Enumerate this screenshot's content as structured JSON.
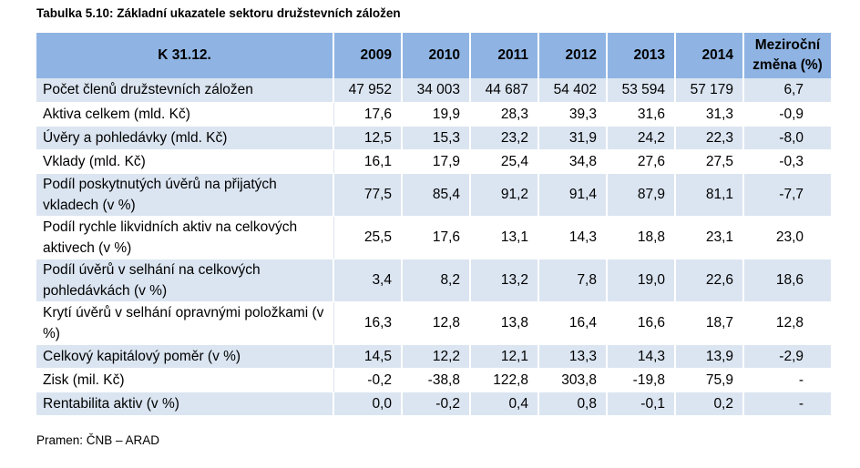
{
  "caption": "Tabulka 5.10: Základní ukazatele sektoru družstevních záložen",
  "header": {
    "label_col": "K 31.12.",
    "years": [
      "2009",
      "2010",
      "2011",
      "2012",
      "2013",
      "2014"
    ],
    "change_col": "Meziroční změna (%)"
  },
  "rows": [
    {
      "label": "Počet členů družstevních záložen",
      "values": [
        "47 952",
        "34 003",
        "44 687",
        "54 402",
        "53 594",
        "57 179"
      ],
      "change": "6,7"
    },
    {
      "label": "Aktiva celkem (mld. Kč)",
      "values": [
        "17,6",
        "19,9",
        "28,3",
        "39,3",
        "31,6",
        "31,3"
      ],
      "change": "-0,9"
    },
    {
      "label": "Úvěry a pohledávky (mld. Kč)",
      "values": [
        "12,5",
        "15,3",
        "23,2",
        "31,9",
        "24,2",
        "22,3"
      ],
      "change": "-8,0"
    },
    {
      "label": "Vklady (mld. Kč)",
      "values": [
        "16,1",
        "17,9",
        "25,4",
        "34,8",
        "27,6",
        "27,5"
      ],
      "change": "-0,3"
    },
    {
      "label": "Podíl poskytnutých úvěrů na přijatých vkladech (v %)",
      "values": [
        "77,5",
        "85,4",
        "91,2",
        "91,4",
        "87,9",
        "81,1"
      ],
      "change": "-7,7"
    },
    {
      "label": "Podíl rychle likvidních aktiv na celkových aktivech (v %)",
      "values": [
        "25,5",
        "17,6",
        "13,1",
        "14,3",
        "18,8",
        "23,1"
      ],
      "change": "23,0"
    },
    {
      "label": "Podíl úvěrů v selhání na celkových pohledávkách (v %)",
      "values": [
        "3,4",
        "8,2",
        "13,2",
        "7,8",
        "19,0",
        "22,6"
      ],
      "change": "18,6"
    },
    {
      "label": "Krytí úvěrů v selhání opravnými položkami (v %)",
      "values": [
        "16,3",
        "12,8",
        "13,8",
        "16,4",
        "16,6",
        "18,7"
      ],
      "change": "12,8"
    },
    {
      "label": "Celkový kapitálový poměr (v %)",
      "values": [
        "14,5",
        "12,2",
        "12,1",
        "13,3",
        "14,3",
        "13,9"
      ],
      "change": "-2,9"
    },
    {
      "label": "Zisk (mil. Kč)",
      "values": [
        "-0,2",
        "-38,8",
        "122,8",
        "303,8",
        "-19,8",
        "75,9"
      ],
      "change": "-"
    },
    {
      "label": "Rentabilita aktiv (v %)",
      "values": [
        "0,0",
        "-0,2",
        "0,4",
        "0,8",
        "-0,1",
        "0,2"
      ],
      "change": "-"
    }
  ],
  "source": "Pramen: ČNB – ARAD"
}
